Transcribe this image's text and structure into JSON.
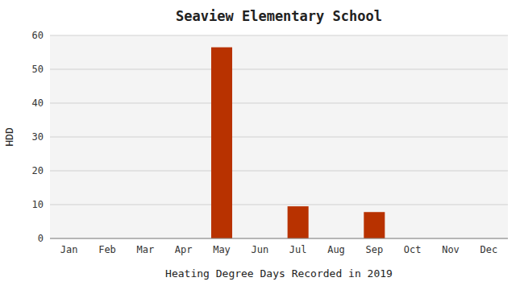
{
  "chart_data": {
    "type": "bar",
    "title": "Seaview Elementary School",
    "xlabel": "Heating Degree Days Recorded in 2019",
    "ylabel": "HDD",
    "categories": [
      "Jan",
      "Feb",
      "Mar",
      "Apr",
      "May",
      "Jun",
      "Jul",
      "Aug",
      "Sep",
      "Oct",
      "Nov",
      "Dec"
    ],
    "values": [
      0,
      0,
      0,
      0,
      56.5,
      0,
      9.5,
      0,
      7.8,
      0,
      0,
      0
    ],
    "color": "#b83200",
    "ylim": [
      0,
      60
    ],
    "yticks": [
      0,
      10,
      20,
      30,
      40,
      50,
      60
    ],
    "grid": true
  }
}
